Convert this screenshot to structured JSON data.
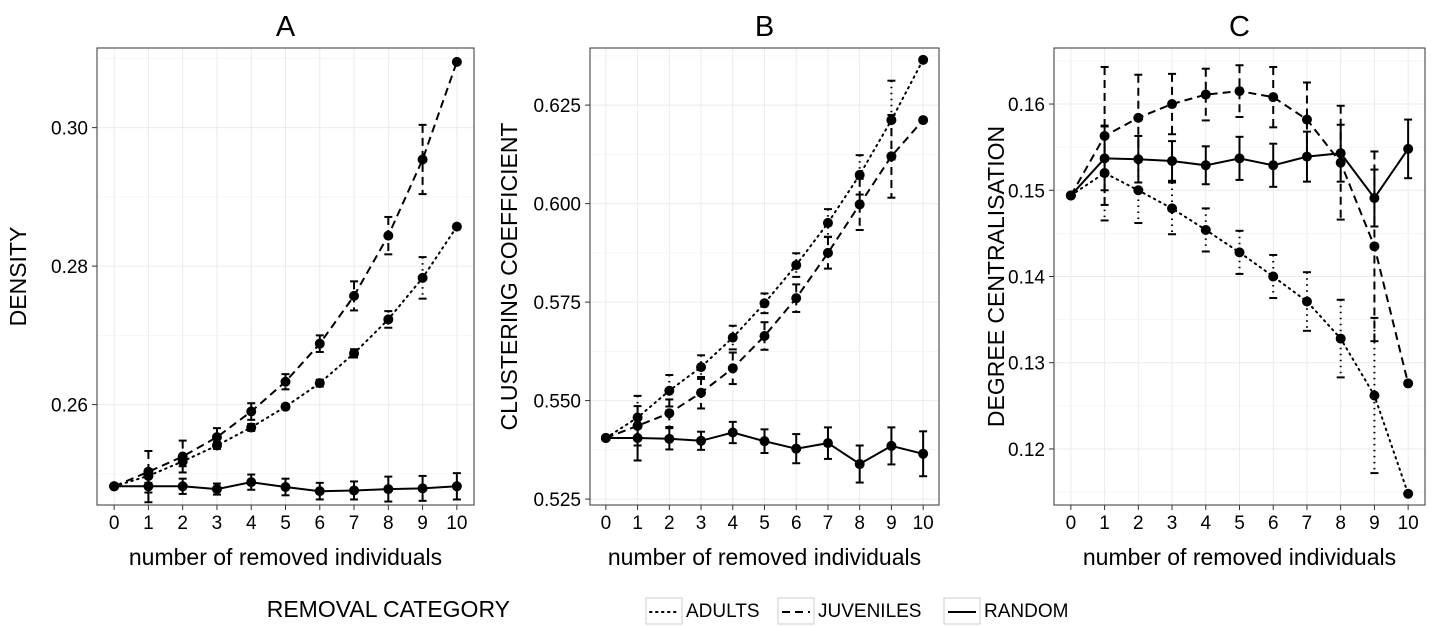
{
  "legend": {
    "title": "REMOVAL CATEGORY",
    "items": [
      {
        "label": "ADULTS",
        "style": "dotted"
      },
      {
        "label": "JUVENILES",
        "style": "dashed"
      },
      {
        "label": "RANDOM",
        "style": "solid"
      }
    ],
    "position": "bottom"
  },
  "colors": {
    "ink": "#000000",
    "panel_border": "#333333",
    "grid": "#ebebeb",
    "background": "#ffffff"
  },
  "chart_data": [
    {
      "type": "line",
      "title": "A",
      "xlabel": "number of removed individuals",
      "ylabel": "DENSITY",
      "x": [
        0,
        1,
        2,
        3,
        4,
        5,
        6,
        7,
        8,
        9,
        10
      ],
      "xlim": [
        -0.5,
        10.5
      ],
      "ylim": [
        0.2455,
        0.3115
      ],
      "yticks": [
        0.26,
        0.28,
        0.3
      ],
      "ytick_labels": [
        "0.26",
        "0.28",
        "0.30"
      ],
      "grid": true,
      "series": [
        {
          "name": "ADULTS",
          "style": "dotted",
          "values": [
            0.2482,
            0.2497,
            0.2518,
            0.2541,
            0.2567,
            0.2597,
            0.2631,
            0.2674,
            0.2723,
            0.2783,
            0.2857
          ],
          "err": [
            0,
            0.001,
            0.0007,
            0.0005,
            0.0005,
            0.0004,
            0.0005,
            0.0006,
            0.0012,
            0.003,
            0
          ]
        },
        {
          "name": "JUVENILES",
          "style": "dashed",
          "values": [
            0.2482,
            0.2503,
            0.2525,
            0.2553,
            0.259,
            0.2633,
            0.2688,
            0.2757,
            0.2844,
            0.2954,
            0.3095
          ],
          "err": [
            0,
            0.003,
            0.0023,
            0.0013,
            0.0012,
            0.0011,
            0.0012,
            0.0021,
            0.0027,
            0.005,
            0
          ]
        },
        {
          "name": "RANDOM",
          "style": "solid",
          "values": [
            0.2482,
            0.2482,
            0.2482,
            0.2478,
            0.2488,
            0.2481,
            0.2475,
            0.2476,
            0.2478,
            0.2479,
            0.2482
          ],
          "err": [
            0,
            0.0023,
            0.0011,
            0.0008,
            0.0011,
            0.0012,
            0.0012,
            0.0013,
            0.0018,
            0.0018,
            0.0019
          ]
        }
      ]
    },
    {
      "type": "line",
      "title": "B",
      "xlabel": "number of removed individuals",
      "ylabel": "CLUSTERING COEFFICIENT",
      "x": [
        0,
        1,
        2,
        3,
        4,
        5,
        6,
        7,
        8,
        9,
        10
      ],
      "xlim": [
        -0.5,
        10.5
      ],
      "ylim": [
        0.5235,
        0.6395
      ],
      "yticks": [
        0.525,
        0.55,
        0.575,
        0.6,
        0.625
      ],
      "ytick_labels": [
        "0.525",
        "0.550",
        "0.575",
        "0.600",
        "0.625"
      ],
      "grid": true,
      "series": [
        {
          "name": "ADULTS",
          "style": "dotted",
          "values": [
            0.5405,
            0.5457,
            0.5525,
            0.5585,
            0.566,
            0.5747,
            0.5844,
            0.5951,
            0.6073,
            0.6212,
            0.6365
          ],
          "err": [
            0,
            0.0055,
            0.004,
            0.003,
            0.003,
            0.0025,
            0.003,
            0.0035,
            0.005,
            0.01,
            0
          ]
        },
        {
          "name": "JUVENILES",
          "style": "dashed",
          "values": [
            0.5405,
            0.5436,
            0.5468,
            0.552,
            0.5582,
            0.5664,
            0.576,
            0.5875,
            0.5998,
            0.612,
            0.6212
          ],
          "err": [
            0,
            0.005,
            0.0035,
            0.004,
            0.004,
            0.0035,
            0.0035,
            0.004,
            0.0065,
            0.0105,
            0
          ]
        },
        {
          "name": "RANDOM",
          "style": "solid",
          "values": [
            0.5405,
            0.5405,
            0.5403,
            0.5398,
            0.5419,
            0.5397,
            0.5378,
            0.5392,
            0.5339,
            0.5385,
            0.5365
          ],
          "err": [
            0,
            0.0057,
            0.0027,
            0.0023,
            0.0027,
            0.003,
            0.0037,
            0.004,
            0.0047,
            0.0047,
            0.0057
          ]
        }
      ]
    },
    {
      "type": "line",
      "title": "C",
      "xlabel": "number of removed individuals",
      "ylabel": "DEGREE CENTRALISATION",
      "x": [
        0,
        1,
        2,
        3,
        4,
        5,
        6,
        7,
        8,
        9,
        10
      ],
      "xlim": [
        -0.5,
        10.5
      ],
      "ylim": [
        0.1135,
        0.1665
      ],
      "yticks": [
        0.12,
        0.13,
        0.14,
        0.15,
        0.16
      ],
      "ytick_labels": [
        "0.12",
        "0.13",
        "0.14",
        "0.15",
        "0.16"
      ],
      "grid": true,
      "series": [
        {
          "name": "ADULTS",
          "style": "dotted",
          "values": [
            0.1494,
            0.152,
            0.15,
            0.1479,
            0.1454,
            0.1428,
            0.14,
            0.1371,
            0.1328,
            0.1262,
            0.1148
          ],
          "err": [
            0,
            0.0055,
            0.0038,
            0.003,
            0.0025,
            0.0025,
            0.0025,
            0.0034,
            0.0045,
            0.009,
            0
          ]
        },
        {
          "name": "JUVENILES",
          "style": "dashed",
          "values": [
            0.1494,
            0.1563,
            0.1584,
            0.16,
            0.1611,
            0.1615,
            0.1608,
            0.1582,
            0.1532,
            0.1435,
            0.1276
          ],
          "err": [
            0,
            0.008,
            0.005,
            0.0035,
            0.003,
            0.003,
            0.0035,
            0.0043,
            0.0066,
            0.011,
            0
          ]
        },
        {
          "name": "RANDOM",
          "style": "solid",
          "values": [
            0.1494,
            0.1537,
            0.1536,
            0.1534,
            0.1529,
            0.1537,
            0.1529,
            0.1539,
            0.1543,
            0.1491,
            0.1548
          ],
          "err": [
            0,
            0.0037,
            0.0027,
            0.0023,
            0.0022,
            0.0025,
            0.0025,
            0.0029,
            0.0033,
            0.0033,
            0.0034
          ]
        }
      ]
    }
  ]
}
